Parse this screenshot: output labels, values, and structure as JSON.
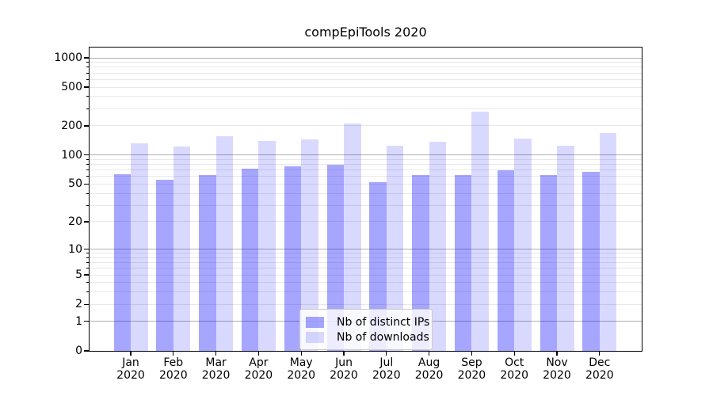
{
  "figure": {
    "title": "compEpiTools 2020"
  },
  "colors": {
    "ips_bar": "rgba(0,0,255,0.35)",
    "downloads_bar": "rgba(0,0,255,0.15)",
    "major_grid": "#b0b0b0",
    "minor_grid": "#e8e8e8",
    "axis": "#000000",
    "legend_border": "#cccccc",
    "text": "#000000"
  },
  "chart_data": {
    "type": "bar",
    "title": "compEpiTools 2020",
    "categories": [
      "Jan 2020",
      "Feb 2020",
      "Mar 2020",
      "Apr 2020",
      "May 2020",
      "Jun 2020",
      "Jul 2020",
      "Aug 2020",
      "Sep 2020",
      "Oct 2020",
      "Nov 2020",
      "Dec 2020"
    ],
    "series": [
      {
        "name": "Nb of distinct IPs",
        "color": "rgba(0,0,255,0.35)",
        "values": [
          63,
          55,
          62,
          72,
          76,
          80,
          52,
          62,
          62,
          70,
          62,
          67
        ]
      },
      {
        "name": "Nb of downloads",
        "color": "rgba(0,0,255,0.15)",
        "values": [
          133,
          123,
          158,
          141,
          145,
          210,
          125,
          138,
          280,
          147,
          125,
          168
        ]
      }
    ],
    "xlabel": "",
    "ylabel": "",
    "yscale": "symlog-log1p",
    "y_ticks": [
      0,
      1,
      2,
      5,
      10,
      20,
      50,
      100,
      200,
      500,
      1000
    ],
    "ylim": [
      0,
      1275
    ],
    "grid": true,
    "legend_position": "lower center"
  }
}
